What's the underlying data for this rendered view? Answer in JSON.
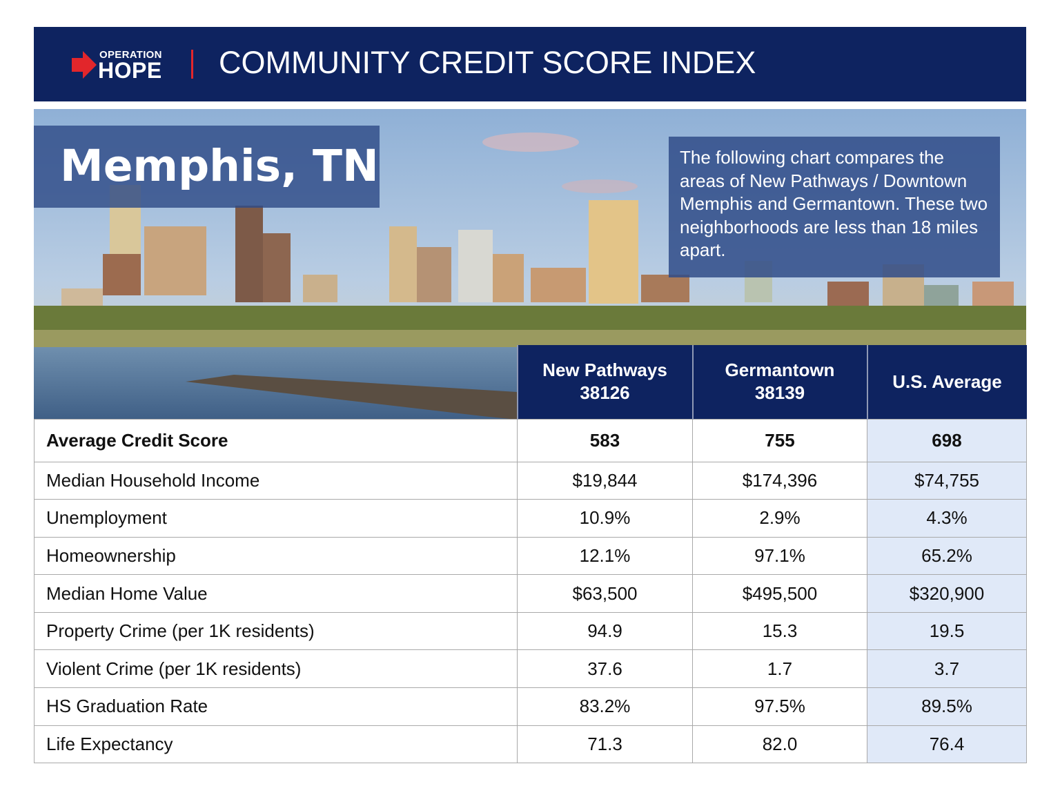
{
  "header": {
    "logo_top": "OPERATION",
    "logo_bottom": "HOPE",
    "title": "COMMUNITY CREDIT SCORE INDEX"
  },
  "hero": {
    "city": "Memphis, TN",
    "description": "The following chart compares the areas of New Pathways / Downtown Memphis and Germantown. These two neighborhoods are less than 18 miles apart."
  },
  "colors": {
    "navy": "#0e2360",
    "red": "#e2262b",
    "us_column": "#e0e9f8"
  },
  "table": {
    "columns": [
      {
        "line1": "New Pathways",
        "line2": "38126"
      },
      {
        "line1": "Germantown",
        "line2": "38139"
      },
      {
        "line1": "U.S. Average",
        "line2": ""
      }
    ],
    "rows": [
      {
        "label": "Average Credit Score",
        "values": [
          "583",
          "755",
          "698"
        ]
      },
      {
        "label": "Median Household Income",
        "values": [
          "$19,844",
          "$174,396",
          "$74,755"
        ]
      },
      {
        "label": "Unemployment",
        "values": [
          "10.9%",
          "2.9%",
          "4.3%"
        ]
      },
      {
        "label": "Homeownership",
        "values": [
          "12.1%",
          "97.1%",
          "65.2%"
        ]
      },
      {
        "label": "Median Home Value",
        "values": [
          "$63,500",
          "$495,500",
          "$320,900"
        ]
      },
      {
        "label": "Property Crime (per 1K residents)",
        "values": [
          "94.9",
          "15.3",
          "19.5"
        ]
      },
      {
        "label": "Violent Crime (per 1K residents)",
        "values": [
          "37.6",
          "1.7",
          "3.7"
        ]
      },
      {
        "label": "HS Graduation Rate",
        "values": [
          "83.2%",
          "97.5%",
          "89.5%"
        ]
      },
      {
        "label": "Life Expectancy",
        "values": [
          "71.3",
          "82.0",
          "76.4"
        ]
      }
    ]
  }
}
